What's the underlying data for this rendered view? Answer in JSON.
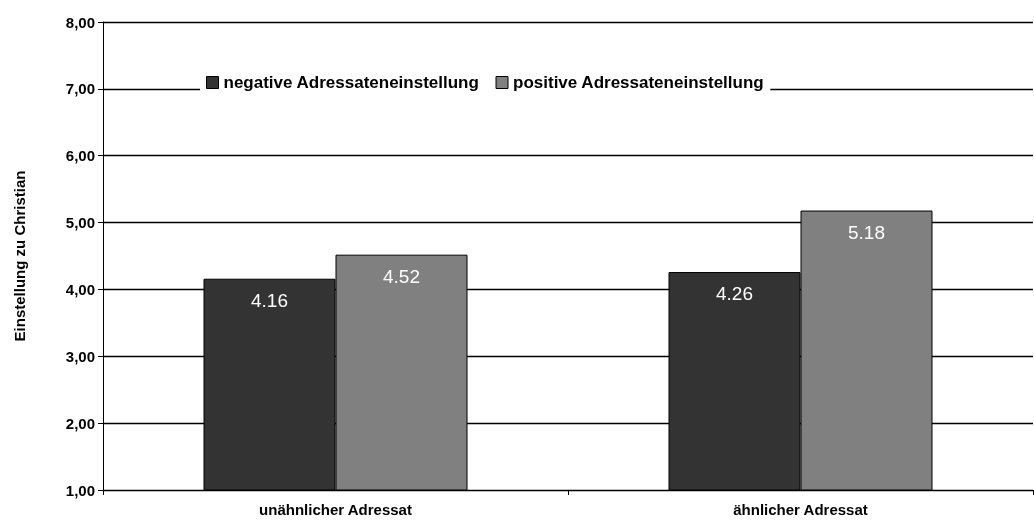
{
  "chart_data": {
    "type": "bar",
    "ylabel": "Einstellung zu Christian",
    "categories": [
      "unähnlicher Adressat",
      "ähnlicher Adressat"
    ],
    "series": [
      {
        "name": "negative Adressateneinstellung",
        "color": "#333333",
        "values": [
          4.16,
          4.26
        ]
      },
      {
        "name": "positive Adressateneinstellung",
        "color": "#808080",
        "values": [
          4.52,
          5.18
        ]
      }
    ],
    "ylim": [
      1,
      8
    ],
    "yticks": [
      {
        "value": 1,
        "label": "1,00"
      },
      {
        "value": 2,
        "label": "2,00"
      },
      {
        "value": 3,
        "label": "3,00"
      },
      {
        "value": 4,
        "label": "4,00"
      },
      {
        "value": 5,
        "label": "5,00"
      },
      {
        "value": 6,
        "label": "6,00"
      },
      {
        "value": 7,
        "label": "7,00"
      },
      {
        "value": 8,
        "label": "8,00"
      }
    ],
    "grid": true,
    "legend": "top",
    "data_labels": true
  }
}
